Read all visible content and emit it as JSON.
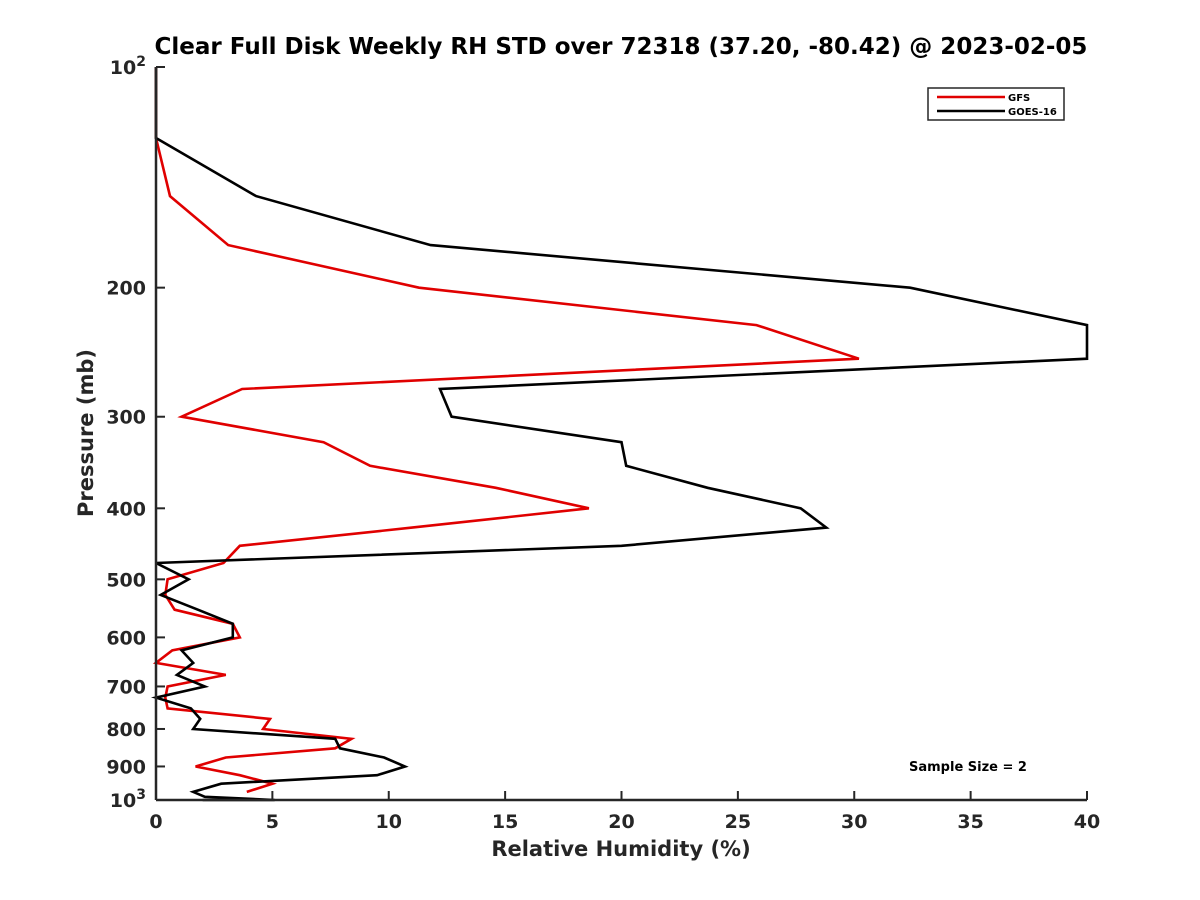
{
  "chart_data": {
    "type": "line",
    "title": "Clear Full Disk Weekly RH STD over 72318 (37.20, -80.42) @ 2023-02-05",
    "xlabel": "Relative Humidity (%)",
    "ylabel": "Pressure (mb)",
    "xlim": [
      0,
      40
    ],
    "ylim": [
      100,
      1000
    ],
    "y_scale": "log",
    "y_reversed": true,
    "x_ticks": [
      "0",
      "5",
      "10",
      "15",
      "20",
      "25",
      "30",
      "35",
      "40"
    ],
    "y_ticks": [
      {
        "value": 100,
        "base": "10",
        "exp": "2"
      },
      {
        "value": 200,
        "label": "200"
      },
      {
        "value": 300,
        "label": "300"
      },
      {
        "value": 400,
        "label": "400"
      },
      {
        "value": 500,
        "label": "500"
      },
      {
        "value": 600,
        "label": "600"
      },
      {
        "value": 700,
        "label": "700"
      },
      {
        "value": 800,
        "label": "800"
      },
      {
        "value": 900,
        "label": "900"
      },
      {
        "value": 1000,
        "base": "10",
        "exp": "3"
      }
    ],
    "grid": false,
    "legend_position": "top-right",
    "annotation": "Sample Size = 2",
    "series": [
      {
        "name": "GFS",
        "color": "#e00000",
        "points": [
          [
            0.0,
            100
          ],
          [
            0.0,
            125
          ],
          [
            0.6,
            150
          ],
          [
            3.1,
            175
          ],
          [
            11.3,
            200
          ],
          [
            25.8,
            225
          ],
          [
            30.2,
            250
          ],
          [
            3.7,
            275
          ],
          [
            1.1,
            300
          ],
          [
            7.2,
            325
          ],
          [
            9.2,
            350
          ],
          [
            14.6,
            375
          ],
          [
            18.6,
            400
          ],
          [
            11.0,
            425
          ],
          [
            3.6,
            450
          ],
          [
            2.9,
            475
          ],
          [
            0.5,
            500
          ],
          [
            0.4,
            525
          ],
          [
            0.8,
            550
          ],
          [
            3.3,
            575
          ],
          [
            3.6,
            600
          ],
          [
            0.7,
            625
          ],
          [
            0.0,
            650
          ],
          [
            3.0,
            675
          ],
          [
            0.5,
            700
          ],
          [
            0.4,
            725
          ],
          [
            0.5,
            750
          ],
          [
            4.9,
            775
          ],
          [
            4.6,
            800
          ],
          [
            8.4,
            825
          ],
          [
            7.7,
            850
          ],
          [
            3.0,
            875
          ],
          [
            1.7,
            900
          ],
          [
            3.6,
            925
          ],
          [
            5.0,
            950
          ],
          [
            3.9,
            975
          ]
        ]
      },
      {
        "name": "GOES-16",
        "color": "#000000",
        "points": [
          [
            0.0,
            100
          ],
          [
            0.0,
            125
          ],
          [
            4.3,
            150
          ],
          [
            11.8,
            175
          ],
          [
            32.4,
            200
          ],
          [
            40.0,
            225
          ],
          [
            40.0,
            250
          ],
          [
            12.2,
            275
          ],
          [
            12.7,
            300
          ],
          [
            20.0,
            325
          ],
          [
            20.2,
            350
          ],
          [
            23.7,
            375
          ],
          [
            27.7,
            400
          ],
          [
            28.8,
            425
          ],
          [
            20.0,
            450
          ],
          [
            0.0,
            475
          ],
          [
            1.4,
            500
          ],
          [
            0.2,
            525
          ],
          [
            1.8,
            550
          ],
          [
            3.3,
            575
          ],
          [
            3.3,
            600
          ],
          [
            1.1,
            625
          ],
          [
            1.6,
            650
          ],
          [
            0.9,
            675
          ],
          [
            2.1,
            700
          ],
          [
            0.0,
            725
          ],
          [
            1.5,
            750
          ],
          [
            1.9,
            775
          ],
          [
            1.6,
            800
          ],
          [
            7.7,
            825
          ],
          [
            7.9,
            850
          ],
          [
            9.8,
            875
          ],
          [
            10.7,
            900
          ],
          [
            9.5,
            925
          ],
          [
            2.8,
            950
          ],
          [
            1.6,
            975
          ],
          [
            2.1,
            990
          ],
          [
            5.1,
            1000
          ],
          [
            4.0,
            1000
          ],
          [
            2.0,
            1000
          ]
        ]
      }
    ]
  }
}
